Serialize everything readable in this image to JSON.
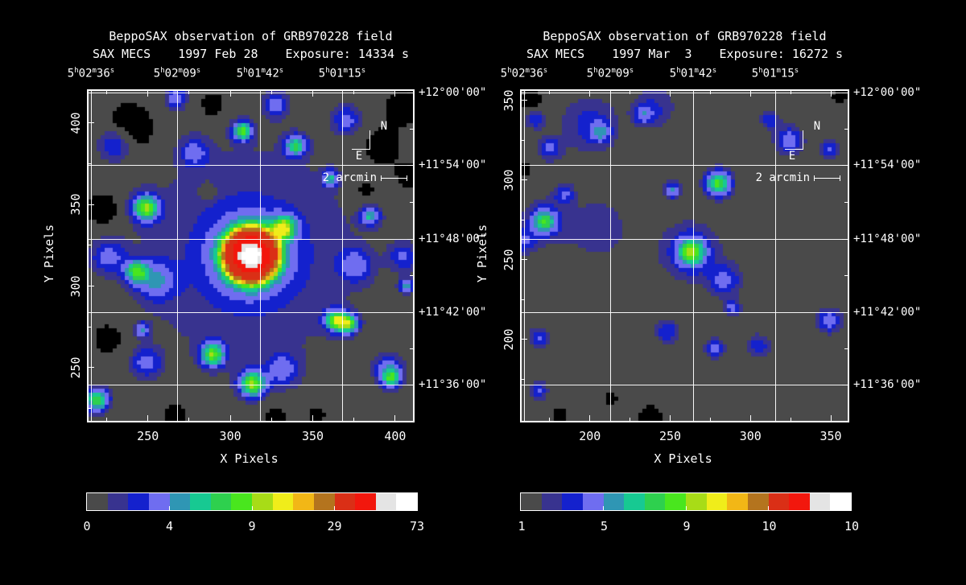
{
  "panels": [
    {
      "title": "BeppoSAX observation of GRB970228 field",
      "instrument": "SAX MECS",
      "date": "1997 Feb 28",
      "exposure": "Exposure: 14334 s",
      "xlabel": "X Pixels",
      "ylabel": "Y Pixels",
      "ra_labels": [
        "5h02m36s",
        "5h02m09s",
        "5h01m42s",
        "5h01m15s"
      ],
      "dec_labels": [
        "+12°00'00\"",
        "+11°54'00\"",
        "+11°48'00\"",
        "+11°42'00\"",
        "+11°36'00\""
      ],
      "x_tick_labels": [
        "250",
        "300",
        "350",
        "400"
      ],
      "y_tick_labels": [
        "400",
        "350",
        "300",
        "250"
      ],
      "compass_north": "N",
      "compass_east": "E",
      "scale_label": "2 arcmin",
      "colorbar_labels": [
        "0",
        "4",
        "9",
        "29",
        "73"
      ]
    },
    {
      "title": "BeppoSAX observation of GRB970228 field",
      "instrument": "SAX MECS",
      "date": "1997 Mar  3",
      "exposure": "Exposure: 16272 s",
      "xlabel": "X Pixels",
      "ylabel": "Y Pixels",
      "ra_labels": [
        "5h02m36s",
        "5h02m09s",
        "5h01m42s",
        "5h01m15s"
      ],
      "dec_labels": [
        "+12°00'00\"",
        "+11°54'00\"",
        "+11°48'00\"",
        "+11°42'00\"",
        "+11°36'00\""
      ],
      "x_tick_labels": [
        "200",
        "250",
        "300",
        "350"
      ],
      "y_tick_labels": [
        "350",
        "300",
        "250",
        "200"
      ],
      "compass_north": "N",
      "compass_east": "E",
      "scale_label": "2 arcmin",
      "colorbar_labels": [
        "1",
        "5",
        "9",
        "10",
        "10"
      ]
    }
  ],
  "chart_data": [
    {
      "type": "heatmap",
      "title": "BeppoSAX observation of GRB970228 field",
      "instrument": "SAX MECS",
      "date": "1997 Feb 28",
      "exposure_s": 14334,
      "xlabel": "X Pixels",
      "ylabel": "Y Pixels",
      "xlim": [
        214,
        410.8
      ],
      "ylim": [
        217.4,
        419.7
      ],
      "x_ticks": [
        250,
        300,
        350,
        400
      ],
      "y_ticks": [
        400,
        350,
        300,
        250
      ],
      "ra_grid": [
        "5h02m36s",
        "5h02m09s",
        "5h01m42s",
        "5h01m15s"
      ],
      "dec_grid": [
        "+12°00'00\"",
        "+11°54'00\"",
        "+11°48'00\"",
        "+11°42'00\"",
        "+11°36'00\""
      ],
      "colorbar_values": [
        0,
        4,
        9,
        29,
        73
      ],
      "peak_source": "GRB970228 X-ray afterglow, bright",
      "background_level": 0.75,
      "palette": [
        "#4a4a4a",
        "#38338f",
        "#1421cd",
        "#6f6df0",
        "#2f96b4",
        "#17c992",
        "#2ed04e",
        "#49e61e",
        "#a8dc17",
        "#f0ed1a",
        "#f2b716",
        "#b4741e",
        "#da2f16",
        "#f2170d",
        "#e4e4e4",
        "#ffffff"
      ],
      "black_color": "#000000",
      "thresholds": [
        0.3,
        1.35,
        2.0,
        2.7,
        3.6,
        4.4,
        5.1,
        5.8,
        6.5,
        7.2,
        8.2,
        9.6,
        13,
        30,
        55,
        70
      ],
      "sources": [
        {
          "x": 312,
          "y": 319,
          "a": 85,
          "s": 7
        },
        {
          "x": 312,
          "y": 319,
          "a": 5.5,
          "s": 14
        },
        {
          "x": 310,
          "y": 320,
          "a": 1.6,
          "s": 45
        },
        {
          "x": 248.5,
          "y": 348,
          "a": 5.6,
          "s": 5.5
        },
        {
          "x": 243,
          "y": 309,
          "a": 4.6,
          "s": 5
        },
        {
          "x": 246.5,
          "y": 273,
          "a": 3.2,
          "s": 3
        },
        {
          "x": 307,
          "y": 395,
          "a": 5.2,
          "s": 4
        },
        {
          "x": 332,
          "y": 336,
          "a": 5.0,
          "s": 5
        },
        {
          "x": 384,
          "y": 343,
          "a": 3.6,
          "s": 4
        },
        {
          "x": 339,
          "y": 386,
          "a": 4.4,
          "s": 4.5
        },
        {
          "x": 360,
          "y": 366,
          "a": 3.4,
          "s": 3.5
        },
        {
          "x": 289,
          "y": 258,
          "a": 5.3,
          "s": 5
        },
        {
          "x": 313,
          "y": 240,
          "a": 5.7,
          "s": 5.5
        },
        {
          "x": 363,
          "y": 279,
          "a": 5.6,
          "s": 4.5
        },
        {
          "x": 371,
          "y": 277,
          "a": 5.4,
          "s": 4
        },
        {
          "x": 219,
          "y": 230,
          "a": 5.0,
          "s": 5
        },
        {
          "x": 397,
          "y": 243,
          "a": 3.8,
          "s": 4
        },
        {
          "x": 406,
          "y": 300,
          "a": 3.4,
          "s": 3
        },
        {
          "x": 267,
          "y": 415,
          "a": 2.9,
          "s": 4
        },
        {
          "x": 230,
          "y": 387,
          "a": 2.4,
          "s": 7
        },
        {
          "x": 278,
          "y": 382,
          "a": 2.2,
          "s": 6
        },
        {
          "x": 370,
          "y": 402,
          "a": 2.3,
          "s": 6
        },
        {
          "x": 327,
          "y": 411,
          "a": 2.5,
          "s": 5
        },
        {
          "x": 226,
          "y": 318,
          "a": 2.2,
          "s": 7
        },
        {
          "x": 255,
          "y": 303,
          "a": 2.5,
          "s": 8
        },
        {
          "x": 375,
          "y": 313,
          "a": 2.3,
          "s": 7
        },
        {
          "x": 395,
          "y": 249,
          "a": 2.6,
          "s": 6
        },
        {
          "x": 249,
          "y": 253,
          "a": 2.4,
          "s": 6
        },
        {
          "x": 331,
          "y": 249,
          "a": 2.3,
          "s": 7
        },
        {
          "x": 404,
          "y": 318,
          "a": 2.0,
          "s": 6
        },
        {
          "x": 239,
          "y": 396,
          "a": -1.4,
          "s": 11
        },
        {
          "x": 223,
          "y": 347,
          "a": -1.2,
          "s": 8
        },
        {
          "x": 289,
          "y": 411,
          "a": -1.1,
          "s": 6
        },
        {
          "x": 381,
          "y": 358,
          "a": -0.9,
          "s": 6
        },
        {
          "x": 405,
          "y": 411,
          "a": -1.1,
          "s": 8
        },
        {
          "x": 408,
          "y": 367,
          "a": -0.9,
          "s": 6
        },
        {
          "x": 226,
          "y": 268,
          "a": -1.1,
          "s": 7
        },
        {
          "x": 266,
          "y": 221,
          "a": -1.0,
          "s": 6
        },
        {
          "x": 327,
          "y": 221,
          "a": -0.9,
          "s": 6
        },
        {
          "x": 352,
          "y": 221,
          "a": -0.8,
          "s": 5
        },
        {
          "x": 286,
          "y": 358,
          "a": -1.3,
          "s": 3.5
        },
        {
          "x": 390,
          "y": 385,
          "a": -0.8,
          "s": 12
        }
      ]
    },
    {
      "type": "heatmap",
      "title": "BeppoSAX observation of GRB970228 field",
      "instrument": "SAX MECS",
      "date": "1997 Mar 3",
      "exposure_s": 16272,
      "xlabel": "X Pixels",
      "ylabel": "Y Pixels",
      "xlim": [
        157.5,
        360.5
      ],
      "ylim": [
        149,
        356
      ],
      "x_ticks": [
        200,
        250,
        300,
        350
      ],
      "y_ticks": [
        350,
        300,
        250,
        200
      ],
      "ra_grid": [
        "5h02m36s",
        "5h02m09s",
        "5h01m42s",
        "5h01m15s"
      ],
      "dec_grid": [
        "+12°00'00\"",
        "+11°54'00\"",
        "+11°48'00\"",
        "+11°42'00\"",
        "+11°36'00\""
      ],
      "colorbar_values": [
        1,
        5,
        9,
        10,
        10
      ],
      "peak_source": "GRB970228 X-ray afterglow, faded",
      "background_level": 0.75,
      "palette": [
        "#4a4a4a",
        "#38338f",
        "#1421cd",
        "#6f6df0",
        "#2f96b4",
        "#17c992",
        "#2ed04e",
        "#49e61e",
        "#a8dc17",
        "#f0ed1a",
        "#f2b716",
        "#b4741e",
        "#da2f16",
        "#f2170d",
        "#e4e4e4",
        "#ffffff"
      ],
      "black_color": "#000000",
      "thresholds": [
        0.3,
        1.35,
        2.0,
        2.7,
        3.6,
        4.4,
        5.1,
        5.8,
        6.5,
        7.2,
        8.2,
        9.6,
        13,
        30,
        55,
        70
      ],
      "sources": [
        {
          "x": 263,
          "y": 255,
          "a": 4.5,
          "s": 6
        },
        {
          "x": 263,
          "y": 255,
          "a": 1.7,
          "s": 13
        },
        {
          "x": 284,
          "y": 237,
          "a": 2.2,
          "s": 7
        },
        {
          "x": 289,
          "y": 220,
          "a": 2.8,
          "s": 3
        },
        {
          "x": 280,
          "y": 298,
          "a": 5.3,
          "s": 5.5
        },
        {
          "x": 251.5,
          "y": 293.5,
          "a": 2.9,
          "s": 3.5
        },
        {
          "x": 171.5,
          "y": 274,
          "a": 3.5,
          "s": 5
        },
        {
          "x": 171.5,
          "y": 274,
          "a": 1.5,
          "s": 9
        },
        {
          "x": 184,
          "y": 291,
          "a": 2.0,
          "s": 4
        },
        {
          "x": 158.5,
          "y": 261.5,
          "a": 2.0,
          "s": 5
        },
        {
          "x": 200,
          "y": 335,
          "a": 1.6,
          "s": 12
        },
        {
          "x": 240,
          "y": 345,
          "a": 1.4,
          "s": 9
        },
        {
          "x": 166,
          "y": 338,
          "a": 2.0,
          "s": 4
        },
        {
          "x": 207,
          "y": 330,
          "a": 2.2,
          "s": 4.5
        },
        {
          "x": 233,
          "y": 341,
          "a": 2.0,
          "s": 4
        },
        {
          "x": 175,
          "y": 320,
          "a": 2.2,
          "s": 5
        },
        {
          "x": 312,
          "y": 338,
          "a": 1.8,
          "s": 4
        },
        {
          "x": 324,
          "y": 325,
          "a": 2.6,
          "s": 6
        },
        {
          "x": 349,
          "y": 319,
          "a": 2.2,
          "s": 4
        },
        {
          "x": 349,
          "y": 212,
          "a": 2.8,
          "s": 5
        },
        {
          "x": 305,
          "y": 196,
          "a": 1.8,
          "s": 5
        },
        {
          "x": 168.5,
          "y": 201,
          "a": 2.0,
          "s": 4.5
        },
        {
          "x": 168,
          "y": 168,
          "a": 2.0,
          "s": 4
        },
        {
          "x": 248,
          "y": 205,
          "a": 2.0,
          "s": 5
        },
        {
          "x": 277.5,
          "y": 194.5,
          "a": 2.5,
          "s": 4
        },
        {
          "x": 205,
          "y": 270,
          "a": 0.8,
          "s": 20
        },
        {
          "x": 163.5,
          "y": 350,
          "a": -1.0,
          "s": 5
        },
        {
          "x": 237.5,
          "y": 151.5,
          "a": -1.1,
          "s": 5
        },
        {
          "x": 181,
          "y": 153,
          "a": -0.8,
          "s": 4
        },
        {
          "x": 213.5,
          "y": 163,
          "a": -0.7,
          "s": 4
        },
        {
          "x": 356,
          "y": 352.5,
          "a": -0.8,
          "s": 4
        },
        {
          "x": 159.5,
          "y": 307,
          "a": -0.7,
          "s": 4
        }
      ]
    }
  ]
}
